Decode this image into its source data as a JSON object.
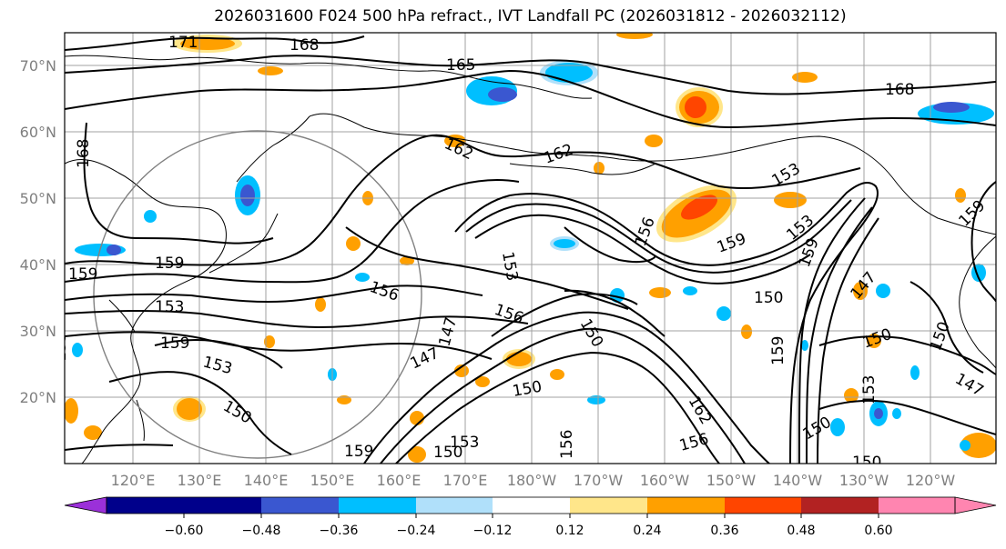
{
  "title": "2026031600 F024 500 hPa refract., IVT Landfall PC (2026031812 - 2026032112)",
  "lat_labels": [
    "70°N",
    "60°N",
    "50°N",
    "40°N",
    "30°N",
    "20°N"
  ],
  "lon_labels": [
    "120°E",
    "130°E",
    "140°E",
    "150°E",
    "160°E",
    "170°E",
    "180°W",
    "170°W",
    "160°W",
    "150°W",
    "140°W",
    "130°W",
    "120°W"
  ],
  "contour_labels": [
    "171",
    "168",
    "165",
    "168",
    "168",
    "162",
    "162",
    "159",
    "159",
    "153",
    "153",
    "159",
    "156",
    "156",
    "153",
    "156",
    "159",
    "159",
    "153",
    "150",
    "147",
    "147",
    "147",
    "150",
    "150",
    "153",
    "150",
    "159",
    "150",
    "162",
    "156",
    "156",
    "153",
    "150",
    "159",
    "150",
    "150",
    "153",
    "147",
    "150",
    "159",
    "153"
  ],
  "colorbar": {
    "ticks": [
      "−0.60",
      "−0.48",
      "−0.36",
      "−0.24",
      "−0.12",
      "0.12",
      "0.24",
      "0.36",
      "0.48",
      "0.60"
    ],
    "colors": [
      "#9b30d9",
      "#00008b",
      "#3a57d0",
      "#00bfff",
      "#b0e0fa",
      "#ffffff",
      "#ffe68a",
      "#ffa000",
      "#ff4500",
      "#b22222",
      "#ff85b0"
    ]
  },
  "chart_data": {
    "type": "map",
    "variable": "500 hPa refractivity (contours) and IVT landfall principal component (shaded)",
    "contour_levels": [
      147,
      150,
      153,
      156,
      159,
      162,
      165,
      168,
      171
    ],
    "shading_levels": [
      -0.6,
      -0.48,
      -0.36,
      -0.24,
      -0.12,
      0.12,
      0.24,
      0.36,
      0.48,
      0.6
    ],
    "lat_range": [
      10,
      75
    ],
    "lon_range": [
      "112°E",
      "115°W"
    ]
  }
}
